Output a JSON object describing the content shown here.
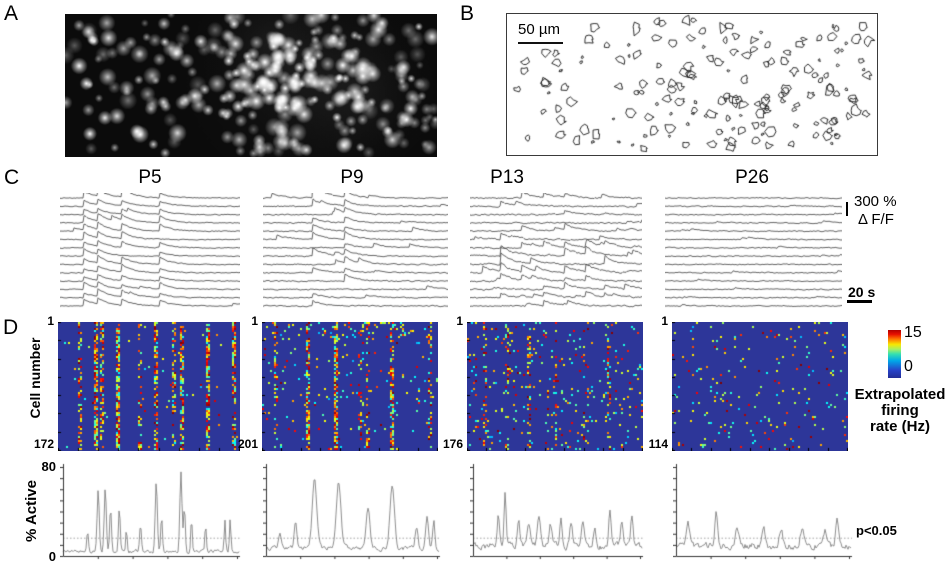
{
  "panels": {
    "a": {
      "label": "A"
    },
    "b": {
      "label": "B",
      "scale_bar_label": "50 µm"
    },
    "c": {
      "label": "C",
      "ages": [
        "P5",
        "P9",
        "P13",
        "P26"
      ],
      "amplitude_scale": "300 %",
      "amplitude_unit": "Δ F/F",
      "time_scale": "20 s"
    },
    "d": {
      "label": "D",
      "y_axis_label": "Cell number",
      "first_cell": "1",
      "cell_counts": [
        "172",
        "201",
        "176",
        "114"
      ],
      "colorbar": {
        "max": "15",
        "min": "0",
        "label_line1": "Extrapolated",
        "label_line2": "firing",
        "label_line3": "rate (Hz)"
      }
    },
    "active": {
      "y_label": "% Active",
      "y_max": "80",
      "y_min": "0",
      "significance": "p<0.05"
    }
  },
  "colors": {
    "heatmap_background": "#2d3699",
    "trace_line": "#3c3c3c",
    "active_line": "#808080",
    "threshold_line": "#999999",
    "axis": "#333333",
    "micrograph_background": "#0b0b0b"
  },
  "chart_data": [
    {
      "id": "micrograph",
      "type": "micrograph",
      "description": "grayscale fluorescence image of stained cells, denser bright cluster right of center and small cluster bottom-left",
      "n_cells": 300
    },
    {
      "id": "contours",
      "type": "contours",
      "description": "outline drawing of detected cell contours",
      "n_cells": 170
    },
    {
      "id": "traces-P5",
      "type": "traces",
      "age": "P5",
      "n_traces": 14,
      "sync_event_times_frac": [
        0.13,
        0.21,
        0.34,
        0.55
      ],
      "event_participation": 0.9,
      "amp": 6,
      "rand_events": 1,
      "noise": 0.8,
      "mid_boost": false
    },
    {
      "id": "traces-P9",
      "type": "traces",
      "age": "P9",
      "n_traces": 14,
      "sync_event_times_frac": [
        0.27,
        0.44
      ],
      "event_participation": 0.78,
      "amp": 6,
      "rand_events": 2,
      "noise": 1.0,
      "lead_event": [
        0.27,
        12
      ],
      "mid_boost": false
    },
    {
      "id": "traces-P13",
      "type": "traces",
      "age": "P13",
      "n_traces": 14,
      "sync_event_times_frac": [
        0.18,
        0.3,
        0.43,
        0.55,
        0.67,
        0.78
      ],
      "event_participation": 0.42,
      "amp": 5,
      "rand_events": 3,
      "noise": 1.3,
      "mid_boost": true
    },
    {
      "id": "traces-P26",
      "type": "traces",
      "age": "P26",
      "n_traces": 14,
      "sync_event_times_frac": [],
      "event_participation": 0,
      "amp": 3,
      "rand_events": 2,
      "noise": 0.9,
      "mid_boost": false
    },
    {
      "id": "heatmap-P5",
      "type": "heatmap",
      "age": "P5",
      "rows": 172,
      "value_range": [
        0,
        15
      ],
      "colormap": "jet",
      "density": 0.01,
      "top_boost": false,
      "stripes": [
        [
          0.12,
          0.45
        ],
        [
          0.2,
          0.85
        ],
        [
          0.24,
          0.5
        ],
        [
          0.32,
          0.85
        ],
        [
          0.45,
          0.4
        ],
        [
          0.53,
          0.7
        ],
        [
          0.63,
          0.5
        ],
        [
          0.68,
          0.75
        ],
        [
          0.82,
          0.8
        ],
        [
          0.96,
          0.6
        ]
      ]
    },
    {
      "id": "heatmap-P9",
      "type": "heatmap",
      "age": "P9",
      "rows": 201,
      "value_range": [
        0,
        15
      ],
      "colormap": "jet",
      "density": 0.028,
      "top_boost": true,
      "stripes": [
        [
          0.07,
          0.3
        ],
        [
          0.26,
          0.75
        ],
        [
          0.42,
          0.8
        ],
        [
          0.55,
          0.3
        ],
        [
          0.6,
          0.4
        ],
        [
          0.73,
          0.75
        ],
        [
          0.95,
          0.4
        ]
      ]
    },
    {
      "id": "heatmap-P13",
      "type": "heatmap",
      "age": "P13",
      "rows": 176,
      "value_range": [
        0,
        15
      ],
      "colormap": "jet",
      "density": 0.05,
      "top_boost": false,
      "stripes": [
        [
          0.1,
          0.25
        ],
        [
          0.22,
          0.3
        ],
        [
          0.35,
          0.25
        ],
        [
          0.5,
          0.3
        ],
        [
          0.65,
          0.25
        ],
        [
          0.8,
          0.3
        ]
      ]
    },
    {
      "id": "heatmap-P26",
      "type": "heatmap",
      "age": "P26",
      "rows": 114,
      "value_range": [
        0,
        15
      ],
      "colormap": "jet",
      "density": 0.04,
      "top_boost": false,
      "stripes": []
    },
    {
      "id": "active-P5",
      "type": "active",
      "age": "P5",
      "ylim": [
        0,
        80
      ],
      "threshold": 16,
      "baseline": 4,
      "noise": 3,
      "peaks": [
        [
          0.14,
          18,
          0.005
        ],
        [
          0.2,
          55,
          0.006
        ],
        [
          0.24,
          57,
          0.006
        ],
        [
          0.27,
          38,
          0.005
        ],
        [
          0.32,
          38,
          0.005
        ],
        [
          0.36,
          20,
          0.004
        ],
        [
          0.44,
          25,
          0.005
        ],
        [
          0.53,
          62,
          0.006
        ],
        [
          0.56,
          30,
          0.005
        ],
        [
          0.67,
          72,
          0.006
        ],
        [
          0.69,
          40,
          0.005
        ],
        [
          0.73,
          30,
          0.004
        ],
        [
          0.81,
          25,
          0.004
        ],
        [
          0.92,
          28,
          0.004
        ],
        [
          0.95,
          30,
          0.004
        ]
      ]
    },
    {
      "id": "active-P9",
      "type": "active",
      "age": "P9",
      "ylim": [
        0,
        80
      ],
      "threshold": 16,
      "baseline": 7,
      "noise": 4,
      "peaks": [
        [
          0.08,
          14,
          0.008
        ],
        [
          0.17,
          24,
          0.008
        ],
        [
          0.28,
          62,
          0.013
        ],
        [
          0.42,
          60,
          0.013
        ],
        [
          0.59,
          36,
          0.01
        ],
        [
          0.73,
          58,
          0.013
        ],
        [
          0.87,
          18,
          0.008
        ],
        [
          0.93,
          28,
          0.008
        ],
        [
          0.97,
          24,
          0.006
        ]
      ]
    },
    {
      "id": "active-P13",
      "type": "active",
      "age": "P13",
      "ylim": [
        0,
        80
      ],
      "threshold": 16,
      "baseline": 9,
      "noise": 6,
      "peaks": [
        [
          0.15,
          28,
          0.007
        ],
        [
          0.19,
          48,
          0.006
        ],
        [
          0.27,
          20,
          0.008
        ],
        [
          0.33,
          22,
          0.008
        ],
        [
          0.39,
          28,
          0.008
        ],
        [
          0.46,
          18,
          0.008
        ],
        [
          0.52,
          26,
          0.007
        ],
        [
          0.58,
          20,
          0.008
        ],
        [
          0.65,
          22,
          0.008
        ],
        [
          0.72,
          18,
          0.008
        ],
        [
          0.81,
          33,
          0.007
        ],
        [
          0.88,
          20,
          0.007
        ],
        [
          0.94,
          26,
          0.007
        ]
      ]
    },
    {
      "id": "active-P26",
      "type": "active",
      "age": "P26",
      "ylim": [
        0,
        80
      ],
      "threshold": 16,
      "baseline": 9,
      "noise": 6,
      "peaks": [
        [
          0.07,
          18,
          0.009
        ],
        [
          0.23,
          30,
          0.008
        ],
        [
          0.35,
          16,
          0.01
        ],
        [
          0.5,
          15,
          0.01
        ],
        [
          0.6,
          14,
          0.01
        ],
        [
          0.72,
          16,
          0.009
        ],
        [
          0.85,
          14,
          0.009
        ],
        [
          0.92,
          22,
          0.008
        ]
      ]
    }
  ]
}
